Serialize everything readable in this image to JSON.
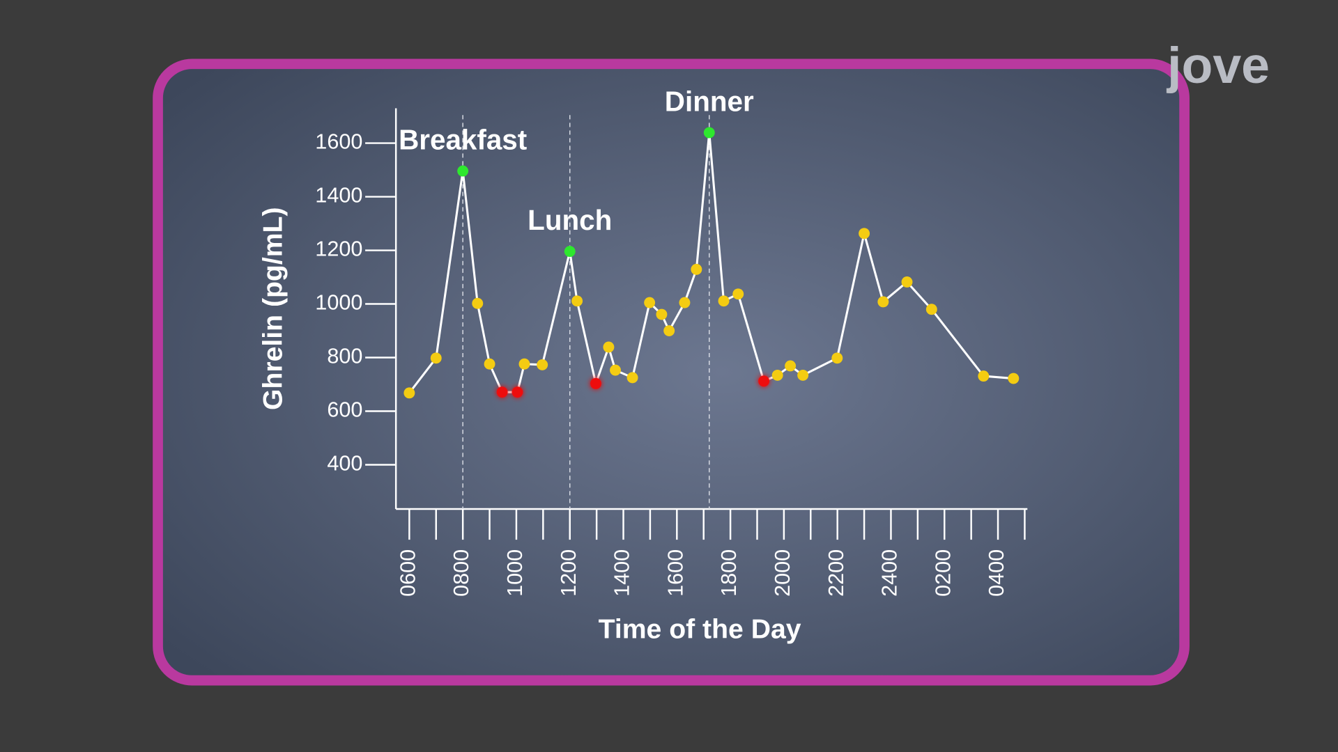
{
  "logo": "jove",
  "chart_data": {
    "type": "line",
    "ylabel": "Ghrelin (pg/mL)",
    "xlabel": "Time of the Day",
    "xlim": [
      5.5,
      29.1
    ],
    "ylim": [
      235,
      1730
    ],
    "yticks": [
      400,
      600,
      800,
      1000,
      1200,
      1400,
      1600
    ],
    "xticks": [
      {
        "value": 6,
        "label": "0600"
      },
      {
        "value": 8,
        "label": "0800"
      },
      {
        "value": 10,
        "label": "1000"
      },
      {
        "value": 12,
        "label": "1200"
      },
      {
        "value": 14,
        "label": "1400"
      },
      {
        "value": 16,
        "label": "1600"
      },
      {
        "value": 18,
        "label": "1800"
      },
      {
        "value": 20,
        "label": "2000"
      },
      {
        "value": 22,
        "label": "2200"
      },
      {
        "value": 24,
        "label": "2400"
      },
      {
        "value": 26,
        "label": "0200"
      },
      {
        "value": 28,
        "label": "0400"
      }
    ],
    "xminor_ticks": [
      7,
      9,
      11,
      13,
      15,
      17,
      19,
      21,
      23,
      25,
      27,
      29
    ],
    "annotations": [
      {
        "text": "Breakfast",
        "x": 8
      },
      {
        "text": "Lunch",
        "x": 12
      },
      {
        "text": "Dinner",
        "x": 17.21
      }
    ],
    "line_color": "#ffffff",
    "series": [
      {
        "x": [
          6.0,
          7.0,
          8.0,
          8.55,
          9.0,
          9.47,
          10.04,
          10.3,
          10.97,
          12.0,
          12.27,
          12.97,
          13.45,
          13.7,
          14.34,
          14.98,
          15.43,
          15.71,
          16.29,
          16.73,
          17.21,
          17.75,
          18.29,
          19.25,
          19.76,
          20.24,
          20.71,
          21.99,
          23.0,
          23.71,
          24.6,
          25.52,
          27.46,
          28.58
        ],
        "values": [
          668,
          798,
          1496,
          1002,
          776,
          671,
          671,
          776,
          773,
          1196,
          1011,
          703,
          839,
          753,
          725,
          1005,
          961,
          900,
          1005,
          1129,
          1639,
          1011,
          1037,
          712,
          734,
          769,
          734,
          798,
          1263,
          1008,
          1082,
          980,
          731,
          722
        ],
        "point_colors": [
          "#f4cc12",
          "#f4cc12",
          "#2ee82e",
          "#f4cc12",
          "#f4cc12",
          "#ee1111",
          "#ee1111",
          "#f4cc12",
          "#f4cc12",
          "#2ee82e",
          "#f4cc12",
          "#ee1111",
          "#f4cc12",
          "#f4cc12",
          "#f4cc12",
          "#f4cc12",
          "#f4cc12",
          "#f4cc12",
          "#f4cc12",
          "#f4cc12",
          "#2ee82e",
          "#f4cc12",
          "#f4cc12",
          "#ee1111",
          "#f4cc12",
          "#f4cc12",
          "#f4cc12",
          "#f4cc12",
          "#f4cc12",
          "#f4cc12",
          "#f4cc12",
          "#f4cc12",
          "#f4cc12",
          "#f4cc12"
        ]
      }
    ]
  }
}
